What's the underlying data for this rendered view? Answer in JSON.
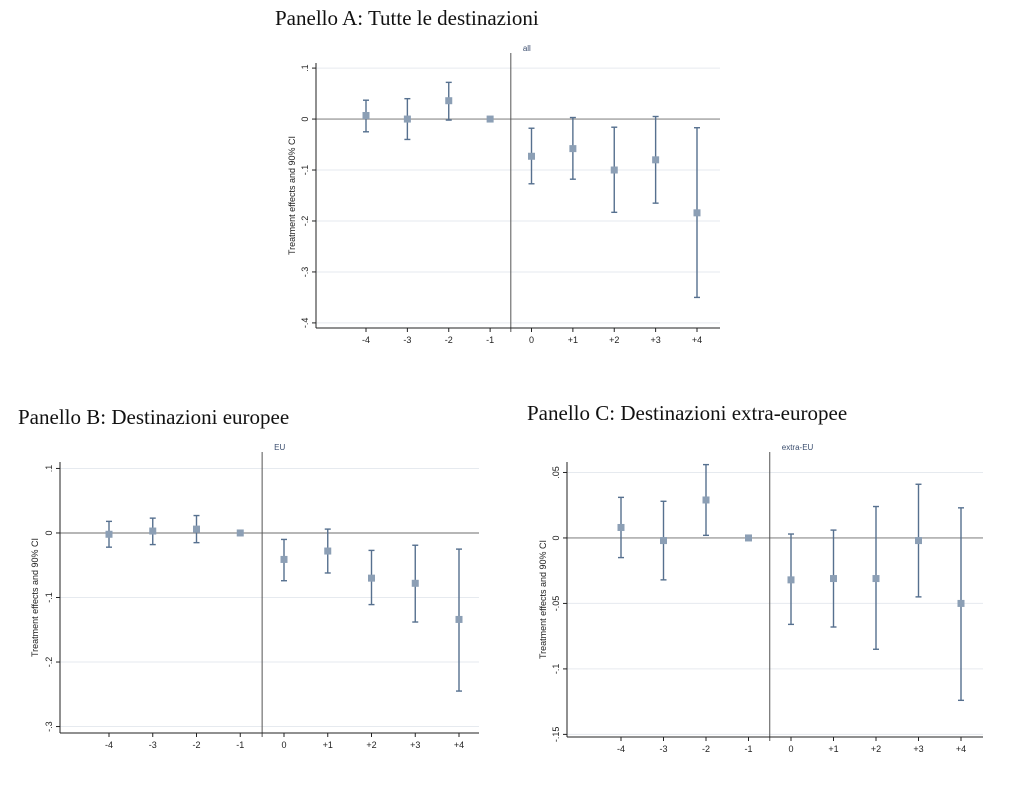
{
  "chart_data": [
    {
      "type": "scatter",
      "title": "Panello A: Tutte le destinazioni",
      "ylabel": "Treatment effects and 90% CI",
      "annotation": "all",
      "categories": [
        "-4",
        "-3",
        "-2",
        "-1",
        "0",
        "+1",
        "+2",
        "+3",
        "+4"
      ],
      "values": [
        0.007,
        0.0,
        0.036,
        0.0,
        -0.073,
        -0.058,
        -0.1,
        -0.08,
        -0.184
      ],
      "ci_low": [
        -0.025,
        -0.04,
        -0.002,
        0.0,
        -0.127,
        -0.118,
        -0.183,
        -0.165,
        -0.35
      ],
      "ci_high": [
        0.037,
        0.04,
        0.072,
        0.0,
        -0.018,
        0.003,
        -0.016,
        0.005,
        -0.017
      ],
      "yticks": [
        0.1,
        0,
        -0.1,
        -0.2,
        -0.3,
        -0.4
      ],
      "ytick_labels": [
        ".1",
        "0",
        "-.1",
        "-.2",
        "-.3",
        "-.4"
      ],
      "ylim": [
        -0.41,
        0.11
      ],
      "grid": true,
      "colors": {
        "marker": "#8c9fb5",
        "errorbar": "#56708f",
        "axis": "#222222",
        "grid": "#e6eaef"
      }
    },
    {
      "type": "scatter",
      "title": "Panello B: Destinazioni europee",
      "ylabel": "Treatment effects and 90% CI",
      "annotation": "EU",
      "categories": [
        "-4",
        "-3",
        "-2",
        "-1",
        "0",
        "+1",
        "+2",
        "+3",
        "+4"
      ],
      "values": [
        -0.002,
        0.003,
        0.006,
        0.0,
        -0.041,
        -0.028,
        -0.07,
        -0.078,
        -0.134
      ],
      "ci_low": [
        -0.022,
        -0.018,
        -0.015,
        0.0,
        -0.074,
        -0.062,
        -0.111,
        -0.138,
        -0.245
      ],
      "ci_high": [
        0.018,
        0.023,
        0.027,
        0.0,
        -0.01,
        0.006,
        -0.027,
        -0.019,
        -0.025
      ],
      "yticks": [
        0.1,
        0,
        -0.1,
        -0.2,
        -0.3
      ],
      "ytick_labels": [
        ".1",
        "0",
        "-.1",
        "-.2",
        "-.3"
      ],
      "ylim": [
        -0.31,
        0.11
      ],
      "grid": true,
      "colors": {
        "marker": "#8c9fb5",
        "errorbar": "#56708f",
        "axis": "#222222",
        "grid": "#e6eaef"
      }
    },
    {
      "type": "scatter",
      "title": "Panello C: Destinazioni extra-europee",
      "ylabel": "Treatment effects and 90% CI",
      "annotation": "extra-EU",
      "categories": [
        "-4",
        "-3",
        "-2",
        "-1",
        "0",
        "+1",
        "+2",
        "+3",
        "+4"
      ],
      "values": [
        0.008,
        -0.002,
        0.029,
        0.0,
        -0.032,
        -0.031,
        -0.031,
        -0.002,
        -0.05
      ],
      "ci_low": [
        -0.015,
        -0.032,
        0.002,
        0.0,
        -0.066,
        -0.068,
        -0.085,
        -0.045,
        -0.124
      ],
      "ci_high": [
        0.031,
        0.028,
        0.056,
        0.0,
        0.003,
        0.006,
        0.024,
        0.041,
        0.023
      ],
      "yticks": [
        0.05,
        0,
        -0.05,
        -0.1,
        -0.15
      ],
      "ytick_labels": [
        ".05",
        "0",
        "-.05",
        "-.1",
        "-.15"
      ],
      "ylim": [
        -0.152,
        0.058
      ],
      "grid": true,
      "colors": {
        "marker": "#8c9fb5",
        "errorbar": "#56708f",
        "axis": "#222222",
        "grid": "#e6eaef"
      }
    }
  ]
}
